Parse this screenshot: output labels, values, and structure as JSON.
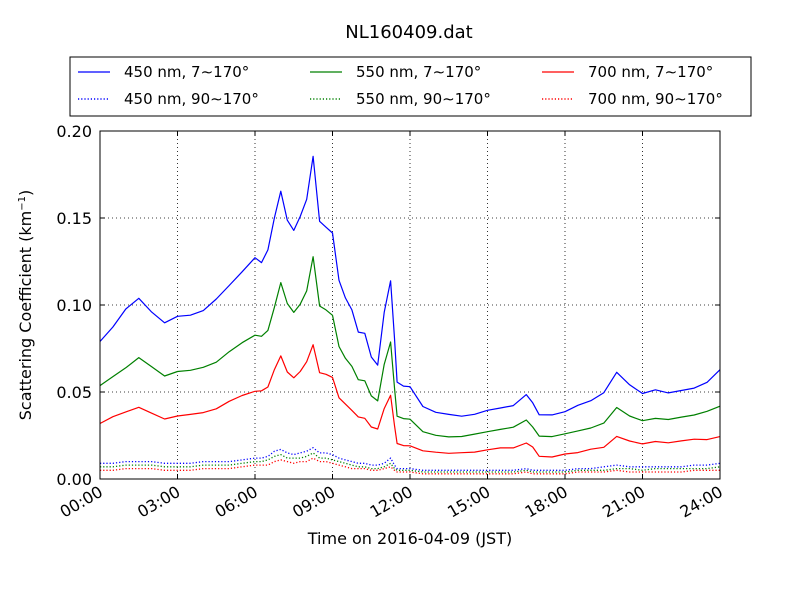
{
  "chart_data": {
    "type": "line",
    "title": "NL160409.dat",
    "xlabel": "Time on 2016-04-09 (JST)",
    "ylabel": {
      "main": "Scattering Coefficient (km",
      "sup": "−1",
      "close": ")"
    },
    "xlim": [
      "00:00",
      "24:00"
    ],
    "ylim": [
      0.0,
      0.2
    ],
    "grid": true,
    "legend_position": "top, above plot",
    "x_ticks": [
      "00:00",
      "03:00",
      "06:00",
      "09:00",
      "12:00",
      "15:00",
      "18:00",
      "21:00",
      "24:00"
    ],
    "y_ticks": [
      "0.00",
      "0.05",
      "0.10",
      "0.15",
      "0.20"
    ],
    "x_hours": [
      0,
      0.5,
      1,
      1.5,
      2,
      2.5,
      3,
      3.5,
      4,
      4.5,
      5,
      5.5,
      6,
      6.25,
      6.5,
      6.75,
      7,
      7.25,
      7.5,
      7.75,
      8,
      8.25,
      8.5,
      8.75,
      9,
      9.25,
      9.5,
      9.75,
      10,
      10.25,
      10.5,
      10.75,
      11,
      11.25,
      11.4,
      11.5,
      11.75,
      12,
      12.5,
      13,
      13.5,
      14,
      14.5,
      15,
      15.5,
      16,
      16.5,
      16.75,
      17,
      17.5,
      18,
      18.5,
      19,
      19.5,
      20,
      20.5,
      21,
      21.5,
      22,
      22.5,
      23,
      23.5,
      24
    ],
    "series": [
      {
        "name": "450 nm, 7∼170°",
        "color": "#0000ff",
        "style": "solid",
        "values": [
          0.079,
          0.087,
          0.097,
          0.103,
          0.095,
          0.089,
          0.093,
          0.094,
          0.097,
          0.104,
          0.112,
          0.12,
          0.128,
          0.125,
          0.132,
          0.15,
          0.165,
          0.148,
          0.142,
          0.15,
          0.16,
          0.185,
          0.148,
          0.145,
          0.142,
          0.115,
          0.105,
          0.098,
          0.085,
          0.084,
          0.07,
          0.065,
          0.095,
          0.113,
          0.08,
          0.055,
          0.053,
          0.053,
          0.042,
          0.039,
          0.038,
          0.037,
          0.038,
          0.04,
          0.041,
          0.042,
          0.048,
          0.043,
          0.036,
          0.036,
          0.038,
          0.042,
          0.045,
          0.05,
          0.062,
          0.055,
          0.05,
          0.052,
          0.05,
          0.051,
          0.052,
          0.055,
          0.062
        ]
      },
      {
        "name": "550 nm, 7∼170°",
        "color": "#008000",
        "style": "solid",
        "values": [
          0.053,
          0.058,
          0.063,
          0.069,
          0.064,
          0.059,
          0.062,
          0.063,
          0.065,
          0.068,
          0.074,
          0.079,
          0.083,
          0.082,
          0.085,
          0.098,
          0.112,
          0.1,
          0.095,
          0.1,
          0.108,
          0.128,
          0.1,
          0.098,
          0.095,
          0.077,
          0.07,
          0.065,
          0.057,
          0.056,
          0.047,
          0.044,
          0.065,
          0.078,
          0.052,
          0.036,
          0.035,
          0.035,
          0.028,
          0.026,
          0.025,
          0.025,
          0.026,
          0.027,
          0.028,
          0.029,
          0.033,
          0.029,
          0.024,
          0.024,
          0.026,
          0.028,
          0.03,
          0.033,
          0.042,
          0.037,
          0.034,
          0.035,
          0.034,
          0.035,
          0.036,
          0.038,
          0.041
        ]
      },
      {
        "name": "700 nm, 7∼170°",
        "color": "#ff0000",
        "style": "solid",
        "values": [
          0.031,
          0.035,
          0.038,
          0.041,
          0.038,
          0.035,
          0.037,
          0.038,
          0.039,
          0.041,
          0.045,
          0.048,
          0.05,
          0.05,
          0.052,
          0.062,
          0.07,
          0.061,
          0.058,
          0.062,
          0.068,
          0.078,
          0.062,
          0.061,
          0.059,
          0.047,
          0.043,
          0.039,
          0.035,
          0.034,
          0.029,
          0.028,
          0.04,
          0.048,
          0.031,
          0.021,
          0.02,
          0.02,
          0.017,
          0.016,
          0.015,
          0.015,
          0.015,
          0.016,
          0.017,
          0.017,
          0.02,
          0.018,
          0.013,
          0.013,
          0.015,
          0.016,
          0.018,
          0.019,
          0.025,
          0.022,
          0.02,
          0.021,
          0.02,
          0.021,
          0.022,
          0.022,
          0.024
        ]
      },
      {
        "name": "450 nm, 90∼170°",
        "color": "#0000ff",
        "style": "dotted",
        "values": [
          0.009,
          0.009,
          0.01,
          0.01,
          0.01,
          0.009,
          0.009,
          0.009,
          0.01,
          0.01,
          0.01,
          0.011,
          0.012,
          0.012,
          0.013,
          0.016,
          0.017,
          0.015,
          0.014,
          0.015,
          0.016,
          0.018,
          0.015,
          0.015,
          0.014,
          0.012,
          0.011,
          0.01,
          0.009,
          0.009,
          0.008,
          0.008,
          0.009,
          0.012,
          0.008,
          0.006,
          0.006,
          0.006,
          0.005,
          0.005,
          0.005,
          0.005,
          0.005,
          0.005,
          0.005,
          0.005,
          0.006,
          0.005,
          0.005,
          0.005,
          0.005,
          0.006,
          0.006,
          0.007,
          0.008,
          0.007,
          0.007,
          0.007,
          0.007,
          0.007,
          0.008,
          0.008,
          0.009
        ]
      },
      {
        "name": "550 nm, 90∼170°",
        "color": "#008000",
        "style": "dotted",
        "values": [
          0.007,
          0.007,
          0.008,
          0.008,
          0.008,
          0.007,
          0.007,
          0.007,
          0.008,
          0.008,
          0.008,
          0.009,
          0.01,
          0.01,
          0.011,
          0.013,
          0.014,
          0.012,
          0.012,
          0.012,
          0.013,
          0.015,
          0.012,
          0.012,
          0.011,
          0.01,
          0.009,
          0.008,
          0.007,
          0.007,
          0.006,
          0.006,
          0.007,
          0.009,
          0.006,
          0.005,
          0.005,
          0.005,
          0.004,
          0.004,
          0.004,
          0.004,
          0.004,
          0.004,
          0.004,
          0.004,
          0.005,
          0.004,
          0.004,
          0.004,
          0.004,
          0.005,
          0.005,
          0.005,
          0.006,
          0.006,
          0.005,
          0.006,
          0.006,
          0.006,
          0.006,
          0.006,
          0.007
        ]
      },
      {
        "name": "700 nm, 90∼170°",
        "color": "#ff0000",
        "style": "dotted",
        "values": [
          0.005,
          0.005,
          0.006,
          0.006,
          0.006,
          0.005,
          0.005,
          0.005,
          0.006,
          0.006,
          0.006,
          0.007,
          0.008,
          0.008,
          0.008,
          0.01,
          0.011,
          0.01,
          0.009,
          0.01,
          0.01,
          0.012,
          0.01,
          0.01,
          0.009,
          0.008,
          0.007,
          0.006,
          0.006,
          0.006,
          0.005,
          0.005,
          0.006,
          0.007,
          0.005,
          0.004,
          0.004,
          0.004,
          0.003,
          0.003,
          0.003,
          0.003,
          0.003,
          0.003,
          0.003,
          0.003,
          0.004,
          0.003,
          0.003,
          0.003,
          0.003,
          0.004,
          0.004,
          0.004,
          0.005,
          0.004,
          0.004,
          0.004,
          0.004,
          0.004,
          0.005,
          0.005,
          0.005
        ]
      }
    ],
    "legend_order": [
      0,
      1,
      2,
      3,
      4,
      5
    ]
  }
}
